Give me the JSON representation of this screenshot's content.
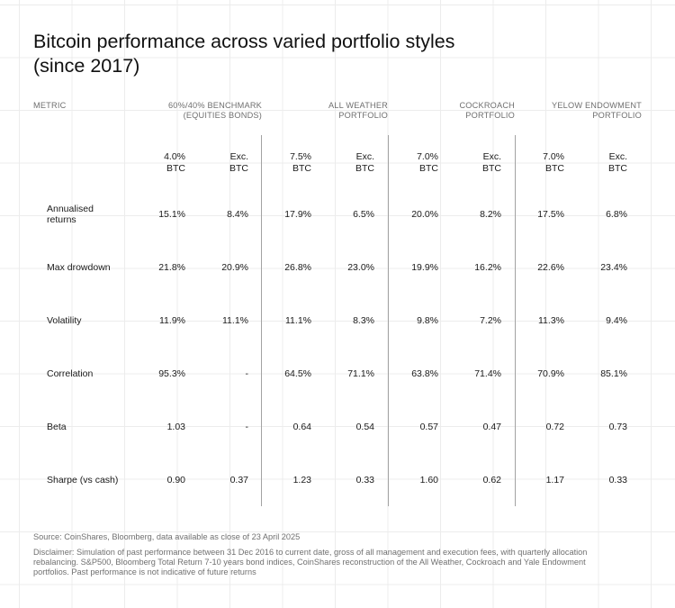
{
  "chart_data": {
    "type": "table",
    "title": "Bitcoin performance across varied portfolio styles (since 2017)",
    "metric_header": "METRIC",
    "groups": [
      {
        "name": "60%/40% BENCHMARK (EQUITIES BONDS)",
        "columns": [
          "4.0% BTC",
          "Exc. BTC"
        ]
      },
      {
        "name": "ALL WEATHER PORTFOLIO",
        "columns": [
          "7.5% BTC",
          "Exc. BTC"
        ]
      },
      {
        "name": "COCKROACH PORTFOLIO",
        "columns": [
          "7.0% BTC",
          "Exc. BTC"
        ]
      },
      {
        "name": "YELOW ENDOWMENT PORTFOLIO",
        "columns": [
          "7.0% BTC",
          "Exc. BTC"
        ]
      }
    ],
    "rows": [
      {
        "metric": "Annualised returns",
        "values": [
          "15.1%",
          "8.4%",
          "17.9%",
          "6.5%",
          "20.0%",
          "8.2%",
          "17.5%",
          "6.8%"
        ]
      },
      {
        "metric": "Max drowdown",
        "values": [
          "21.8%",
          "20.9%",
          "26.8%",
          "23.0%",
          "19.9%",
          "16.2%",
          "22.6%",
          "23.4%"
        ]
      },
      {
        "metric": "Volatility",
        "values": [
          "11.9%",
          "11.1%",
          "11.1%",
          "8.3%",
          "9.8%",
          "7.2%",
          "11.3%",
          "9.4%"
        ]
      },
      {
        "metric": "Correlation",
        "values": [
          "95.3%",
          "-",
          "64.5%",
          "71.1%",
          "63.8%",
          "71.4%",
          "70.9%",
          "85.1%"
        ]
      },
      {
        "metric": "Beta",
        "values": [
          "1.03",
          "-",
          "0.64",
          "0.54",
          "0.57",
          "0.47",
          "0.72",
          "0.73"
        ]
      },
      {
        "metric": "Sharpe (vs cash)",
        "values": [
          "0.90",
          "0.37",
          "1.23",
          "0.33",
          "1.60",
          "0.62",
          "1.17",
          "0.33"
        ]
      }
    ]
  },
  "header": {
    "title_line1": "Bitcoin performance across varied portfolio styles",
    "title_line2": "(since 2017)",
    "metric_label": "METRIC",
    "groups": [
      {
        "line1": "60%/40% BENCHMARK",
        "line2": "(EQUITIES BONDS)"
      },
      {
        "line1": "ALL WEATHER",
        "line2": "PORTFOLIO"
      },
      {
        "line1": "COCKROACH",
        "line2": "PORTFOLIO"
      },
      {
        "line1": "YELOW ENDOWMENT",
        "line2": "PORTFOLIO"
      }
    ]
  },
  "columns": [
    {
      "line1": "4.0%",
      "line2": "BTC"
    },
    {
      "line1": "Exc.",
      "line2": "BTC"
    },
    {
      "line1": "7.5%",
      "line2": "BTC"
    },
    {
      "line1": "Exc.",
      "line2": "BTC"
    },
    {
      "line1": "7.0%",
      "line2": "BTC"
    },
    {
      "line1": "Exc.",
      "line2": "BTC"
    },
    {
      "line1": "7.0%",
      "line2": "BTC"
    },
    {
      "line1": "Exc.",
      "line2": "BTC"
    }
  ],
  "rows": [
    {
      "metric_line1": "Annualised",
      "metric_line2": "returns"
    },
    {
      "metric_line1": "Max drowdown",
      "metric_line2": ""
    },
    {
      "metric_line1": "Volatility",
      "metric_line2": ""
    },
    {
      "metric_line1": "Correlation",
      "metric_line2": ""
    },
    {
      "metric_line1": "Beta",
      "metric_line2": ""
    },
    {
      "metric_line1": "Sharpe (vs cash)",
      "metric_line2": ""
    }
  ],
  "footer": {
    "source": "Source: CoinShares, Bloomberg, data available as close of 23 April 2025",
    "disclaimer_line1": "Disclaimer: Simulation of past performance between 31 Dec 2016 to current date, gross of all management and execution fees, with quarterly allocation",
    "disclaimer_line2": "rebalancing. S&P500, Bloomberg Total Return 7-10 years bond indices,  CoinShares reconstruction of the All Weather, Cockroach and Yale Endowment",
    "disclaimer_line3": "portfolios. Past performance is not indicative of future returns"
  },
  "colors": {
    "text": "#1a1a1a",
    "muted": "#6f6f6f",
    "separator": "#a3a3a3",
    "grid": "#ececec"
  }
}
